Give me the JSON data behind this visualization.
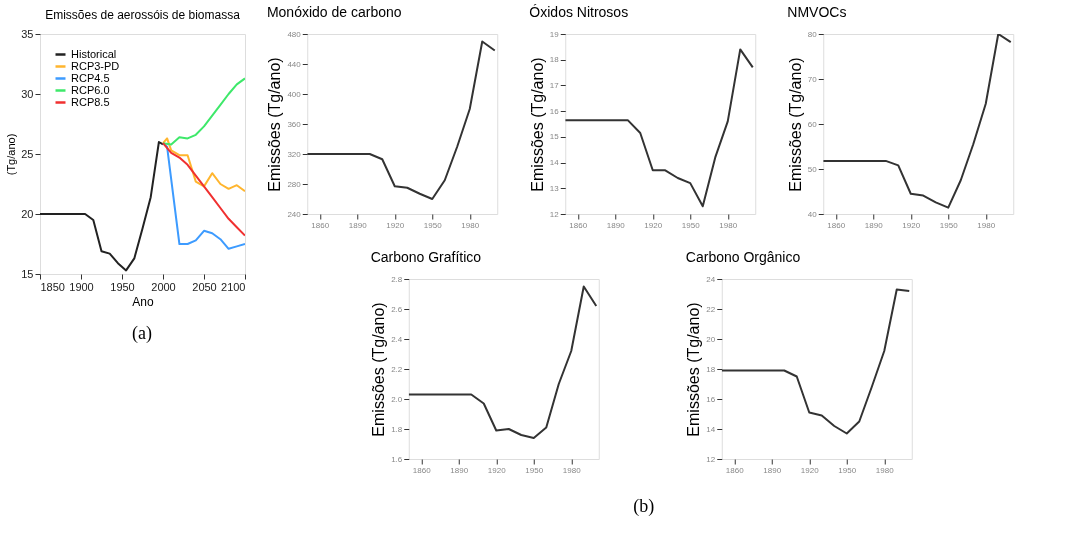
{
  "chart_data": [
    {
      "type": "line",
      "title": "Emissões de aerossóis de biomassa",
      "xlabel": "Ano",
      "ylabel": "(Tg/ano)",
      "xlim": [
        1850,
        2100
      ],
      "ylim": [
        15,
        35
      ],
      "xticks": [
        1850,
        1900,
        1950,
        2000,
        2050,
        2100
      ],
      "yticks": [
        15,
        20,
        25,
        30,
        35
      ],
      "grid": false,
      "legend": "top left",
      "annotations": [
        "(a)"
      ],
      "series": [
        {
          "name": "Historical",
          "color": "#222222",
          "x": [
            1850,
            1905,
            1915,
            1925,
            1935,
            1945,
            1955,
            1965,
            1975,
            1985,
            1995,
            2000
          ],
          "values": [
            20,
            20,
            19.5,
            16.9,
            16.7,
            15.9,
            15.3,
            16.3,
            18.8,
            21.4,
            26.0,
            25.8
          ]
        },
        {
          "name": "RCP3-PD",
          "color": "#ffb52e",
          "x": [
            2000,
            2005,
            2010,
            2020,
            2030,
            2040,
            2050,
            2060,
            2070,
            2080,
            2090,
            2100
          ],
          "values": [
            25.9,
            26.3,
            25.3,
            24.9,
            24.9,
            22.7,
            22.3,
            23.4,
            22.5,
            22.1,
            22.4,
            21.9
          ]
        },
        {
          "name": "RCP4.5",
          "color": "#3d9bff",
          "x": [
            2000,
            2005,
            2020,
            2030,
            2040,
            2050,
            2060,
            2070,
            2080,
            2090,
            2100
          ],
          "values": [
            25.9,
            25.6,
            17.5,
            17.5,
            17.8,
            18.6,
            18.4,
            17.9,
            17.1,
            17.3,
            17.5
          ]
        },
        {
          "name": "RCP6.0",
          "color": "#3ee86a",
          "x": [
            2000,
            2010,
            2020,
            2030,
            2040,
            2050,
            2060,
            2070,
            2080,
            2090,
            2100
          ],
          "values": [
            25.9,
            25.8,
            26.4,
            26.3,
            26.6,
            27.3,
            28.2,
            29.1,
            30.0,
            30.8,
            31.3
          ]
        },
        {
          "name": "RCP8.5",
          "color": "#f03030",
          "x": [
            2000,
            2010,
            2020,
            2030,
            2040,
            2050,
            2060,
            2070,
            2080,
            2090,
            2100
          ],
          "values": [
            25.9,
            25.1,
            24.7,
            24.1,
            23.2,
            22.3,
            21.4,
            20.5,
            19.6,
            18.9,
            18.2
          ]
        }
      ]
    },
    {
      "type": "line",
      "title": "Monóxido de carbono",
      "ylabel": "Emissões (Tg/ano)",
      "xlim": [
        1850,
        2002
      ],
      "ylim": [
        240,
        480
      ],
      "xticks": [
        1860,
        1890,
        1920,
        1950,
        1980
      ],
      "yticks": [
        240,
        280,
        320,
        360,
        400,
        440,
        480
      ],
      "grid": false,
      "x": [
        1850,
        1860,
        1870,
        1880,
        1890,
        1900,
        1910,
        1920,
        1930,
        1940,
        1950,
        1960,
        1970,
        1980,
        1990,
        2000
      ],
      "series": [
        {
          "color": "#333333",
          "values": [
            320,
            320,
            320,
            320,
            320,
            320,
            313,
            277,
            275,
            267,
            260,
            285,
            330,
            380,
            470,
            458
          ]
        }
      ]
    },
    {
      "type": "line",
      "title": "Óxidos Nitrosos",
      "ylabel": "Emissões (Tg/ano)",
      "xlim": [
        1850,
        2002
      ],
      "ylim": [
        12,
        19
      ],
      "xticks": [
        1860,
        1890,
        1920,
        1950,
        1980
      ],
      "yticks": [
        12,
        13,
        14,
        15,
        16,
        17,
        18,
        19
      ],
      "grid": false,
      "x": [
        1850,
        1860,
        1870,
        1880,
        1890,
        1900,
        1910,
        1920,
        1930,
        1940,
        1950,
        1960,
        1970,
        1980,
        1990,
        2000
      ],
      "series": [
        {
          "color": "#333333",
          "values": [
            15.65,
            15.65,
            15.65,
            15.65,
            15.65,
            15.65,
            15.15,
            13.7,
            13.7,
            13.4,
            13.2,
            12.3,
            14.2,
            15.6,
            18.4,
            17.7
          ]
        }
      ]
    },
    {
      "type": "line",
      "title": "NMVOCs",
      "ylabel": "Emissões (Tg/ano)",
      "xlim": [
        1850,
        2002
      ],
      "ylim": [
        40,
        80
      ],
      "xticks": [
        1860,
        1890,
        1920,
        1950,
        1980
      ],
      "yticks": [
        40,
        50,
        60,
        70,
        80
      ],
      "grid": false,
      "x": [
        1850,
        1860,
        1870,
        1880,
        1890,
        1900,
        1910,
        1920,
        1930,
        1940,
        1950,
        1960,
        1970,
        1980,
        1990,
        2000
      ],
      "series": [
        {
          "color": "#333333",
          "values": [
            51.8,
            51.8,
            51.8,
            51.8,
            51.8,
            51.8,
            50.8,
            44.5,
            44.1,
            42.6,
            41.4,
            47.5,
            55.5,
            64.5,
            80,
            78.2
          ]
        }
      ]
    },
    {
      "type": "line",
      "title": "Carbono Grafítico",
      "ylabel": "Emissões (Tg/ano)",
      "xlim": [
        1850,
        2002
      ],
      "ylim": [
        1.6,
        2.8
      ],
      "xticks": [
        1860,
        1890,
        1920,
        1950,
        1980
      ],
      "yticks": [
        1.6,
        1.8,
        {
          "value": 2.0,
          "label": "2.0"
        },
        2.2,
        2.4,
        2.6,
        2.8
      ],
      "grid": false,
      "annotations": [
        "(b)"
      ],
      "x": [
        1850,
        1860,
        1870,
        1880,
        1890,
        1900,
        1910,
        1920,
        1930,
        1940,
        1950,
        1960,
        1970,
        1980,
        1990,
        2000
      ],
      "series": [
        {
          "color": "#333333",
          "values": [
            2.03,
            2.03,
            2.03,
            2.03,
            2.03,
            2.03,
            1.97,
            1.79,
            1.8,
            1.76,
            1.74,
            1.81,
            2.1,
            2.32,
            2.75,
            2.62
          ]
        }
      ]
    },
    {
      "type": "line",
      "title": "Carbono Orgânico",
      "ylabel": "Emissões (Tg/ano)",
      "xlim": [
        1850,
        2002
      ],
      "ylim": [
        12,
        24
      ],
      "xticks": [
        1860,
        1890,
        1920,
        1950,
        1980
      ],
      "yticks": [
        12,
        14,
        16,
        18,
        20,
        22,
        24
      ],
      "grid": false,
      "x": [
        1850,
        1860,
        1870,
        1880,
        1890,
        1900,
        1910,
        1920,
        1930,
        1940,
        1950,
        1960,
        1970,
        1980,
        1990,
        2000
      ],
      "series": [
        {
          "color": "#333333",
          "values": [
            17.9,
            17.9,
            17.9,
            17.9,
            17.9,
            17.9,
            17.5,
            15.1,
            14.9,
            14.2,
            13.7,
            14.5,
            16.8,
            19.2,
            23.3,
            23.2
          ]
        }
      ]
    }
  ]
}
